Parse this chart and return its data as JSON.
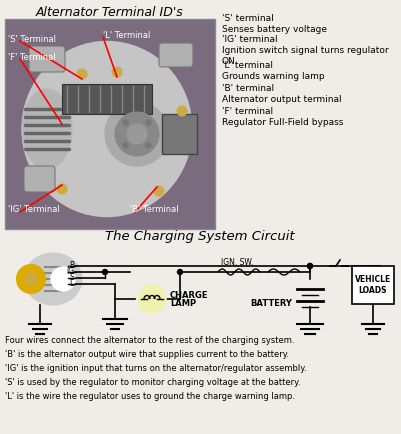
{
  "title_top": "Alternator Terminal ID's",
  "title_bottom": "The Charging System Circuit",
  "bg_color": "#f0ede8",
  "text_color": "#000000",
  "photo_bg": "#7a6b7e",
  "photo_alt_body": "#b8b8b8",
  "photo_alt_dark": "#888888",
  "terminal_descriptions": [
    [
      "'S' terminal",
      "Senses battery voltage"
    ],
    [
      "'IG' terminal",
      "Ignition switch signal turns regulator",
      "ON"
    ],
    [
      "'L' terminal",
      "Grounds warning lamp"
    ],
    [
      "'B' terminal",
      "Alternator output terminal"
    ],
    [
      "'F' terminal",
      "Regulator Full-Field bypass"
    ]
  ],
  "bottom_text": [
    "Four wires connect the alternator to the rest of the charging system.",
    "'B' is the alternator output wire that supplies current to the battery.",
    "'IG' is the ignition input that turns on the alternator/regulator assembly.",
    "'S' is used by the regulator to monitor charging voltage at the battery.",
    "'L' is the wire the regulator uses to ground the charge warning lamp."
  ],
  "photo_labels": [
    [
      "'S' Terminal",
      7,
      193,
      "left",
      "white"
    ],
    [
      "'L' Terminal",
      100,
      200,
      "left",
      "white"
    ],
    [
      "'F' Terminal",
      7,
      175,
      "left",
      "white"
    ],
    [
      "'IG' Terminal",
      7,
      21,
      "left",
      "white"
    ],
    [
      "'B' Terminal",
      123,
      21,
      "left",
      "white"
    ]
  ],
  "red_lines": [
    [
      48,
      193,
      72,
      186
    ],
    [
      110,
      199,
      128,
      190
    ],
    [
      46,
      175,
      68,
      170
    ],
    [
      50,
      23,
      62,
      38
    ],
    [
      154,
      23,
      165,
      40
    ]
  ]
}
